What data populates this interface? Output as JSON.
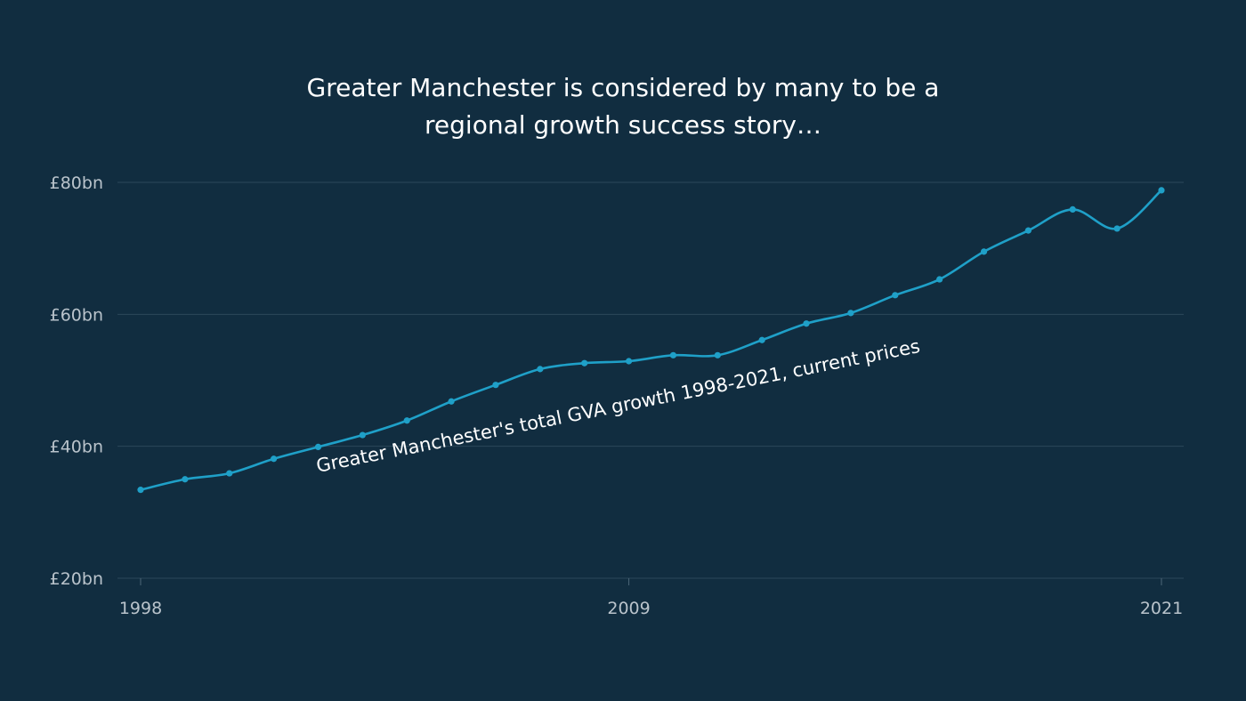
{
  "title_lines": [
    "Greater Manchester is considered by many to be a",
    "regional growth success story…"
  ],
  "colors": {
    "background": "#112d40",
    "line": "#1fa0c8",
    "text": "#ffffff",
    "tick": "#b9c3cb",
    "grid": "#2b475a"
  },
  "chart_data": {
    "type": "line",
    "x": [
      1998,
      1999,
      2000,
      2001,
      2002,
      2003,
      2004,
      2005,
      2006,
      2007,
      2008,
      2009,
      2010,
      2011,
      2012,
      2013,
      2014,
      2015,
      2016,
      2017,
      2018,
      2019,
      2020,
      2021
    ],
    "series": [
      {
        "values": [
          33.4,
          35.0,
          35.9,
          38.1,
          39.9,
          41.7,
          43.9,
          46.8,
          49.3,
          51.7,
          52.6,
          52.9,
          53.8,
          53.8,
          56.1,
          58.6,
          60.2,
          62.9,
          65.3,
          69.5,
          72.7,
          75.9,
          73.0,
          78.8
        ]
      }
    ],
    "annotation": "Greater Manchester's total GVA growth 1998-2021, current prices",
    "xticks": [
      1998,
      2009,
      2021
    ],
    "yticks": [
      20,
      40,
      60,
      80
    ],
    "ytick_labels": [
      "£20bn",
      "£40bn",
      "£60bn",
      "£80bn"
    ],
    "xlim": [
      1998,
      2021
    ],
    "ylim": [
      20,
      80
    ],
    "grid": true,
    "legend": false
  }
}
